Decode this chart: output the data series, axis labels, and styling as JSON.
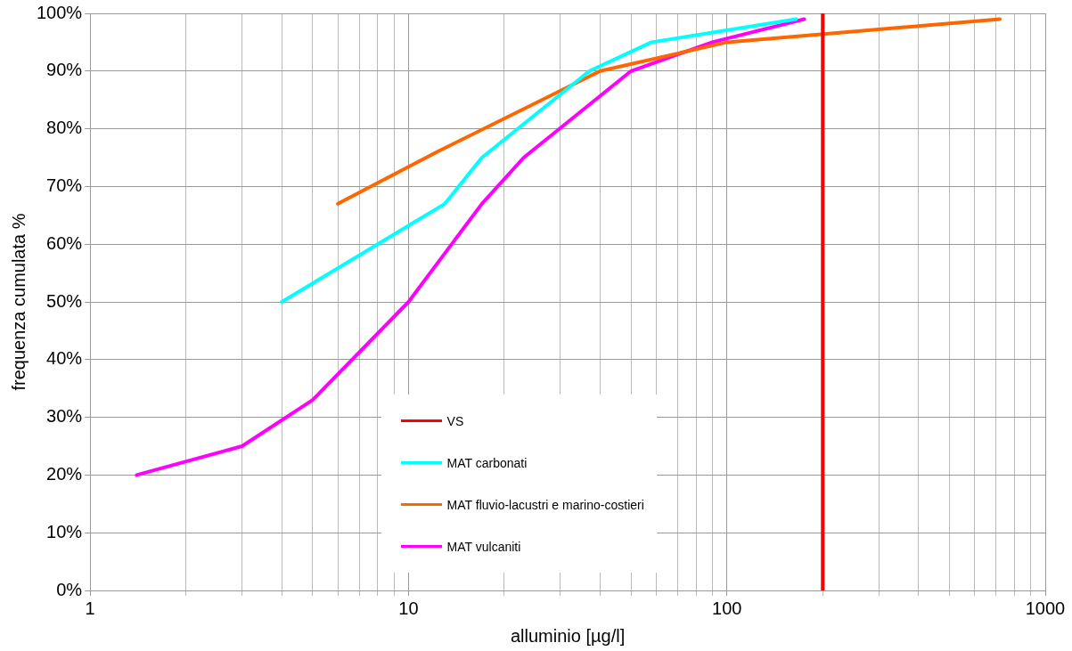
{
  "chart_data": {
    "type": "line",
    "xlabel": "alluminio [µg/l]",
    "ylabel": "frequenza cumulata %",
    "log": "x",
    "grid": true,
    "legend": "bottom",
    "marker": "none",
    "line_style": "solid",
    "xlim": [
      1,
      1000
    ],
    "xticks": [
      1,
      {
        "value": 2,
        "label": null
      },
      {
        "value": 3,
        "label": null
      },
      {
        "value": 4,
        "label": null
      },
      {
        "value": 5,
        "label": null
      },
      {
        "value": 6,
        "label": null
      },
      {
        "value": 7,
        "label": null
      },
      {
        "value": 8,
        "label": null
      },
      {
        "value": 9,
        "label": null
      },
      10,
      {
        "value": 20,
        "label": null
      },
      {
        "value": 30,
        "label": null
      },
      {
        "value": 40,
        "label": null
      },
      {
        "value": 50,
        "label": null
      },
      {
        "value": 60,
        "label": null
      },
      {
        "value": 70,
        "label": null
      },
      {
        "value": 80,
        "label": null
      },
      {
        "value": 90,
        "label": null
      },
      100,
      {
        "value": 200,
        "label": null
      },
      {
        "value": 300,
        "label": null
      },
      {
        "value": 400,
        "label": null
      },
      {
        "value": 500,
        "label": null
      },
      {
        "value": 600,
        "label": null
      },
      {
        "value": 700,
        "label": null
      },
      {
        "value": 800,
        "label": null
      },
      {
        "value": 900,
        "label": null
      },
      1000
    ],
    "ylim": [
      0,
      100
    ],
    "yticks": [
      {
        "value": 0,
        "label": "0%"
      },
      {
        "value": 10,
        "label": "10%"
      },
      {
        "value": 20,
        "label": "20%"
      },
      {
        "value": 30,
        "label": "30%"
      },
      {
        "value": 40,
        "label": "40%"
      },
      {
        "value": 50,
        "label": "50%"
      },
      {
        "value": 60,
        "label": "60%"
      },
      {
        "value": 70,
        "label": "70%"
      },
      {
        "value": 80,
        "label": "80%"
      },
      {
        "value": 90,
        "label": "90%"
      },
      {
        "value": 100,
        "label": "100%"
      }
    ],
    "series": [
      {
        "name": "VS",
        "color": "#ff0000",
        "x": [
          200,
          200
        ],
        "values": [
          0,
          100
        ]
      },
      {
        "name": "MAT carbonati",
        "color": "#00ffff",
        "x": [
          4,
          13,
          17,
          37,
          58,
          165
        ],
        "values": [
          50,
          67,
          75,
          90,
          95,
          99
        ]
      },
      {
        "name": "MAT fluvio-lacustri e marino-costieri",
        "color": "#ff6600",
        "x": [
          6,
          12.3,
          40,
          100,
          720
        ],
        "values": [
          67,
          76,
          90,
          95,
          99
        ]
      },
      {
        "name": "MAT vulcaniti",
        "color": "#ff00ff",
        "x": [
          1.4,
          3,
          5,
          10,
          17,
          23,
          50,
          90,
          175
        ],
        "values": [
          20,
          25,
          33,
          50,
          67,
          75,
          90,
          95,
          99
        ]
      }
    ]
  }
}
